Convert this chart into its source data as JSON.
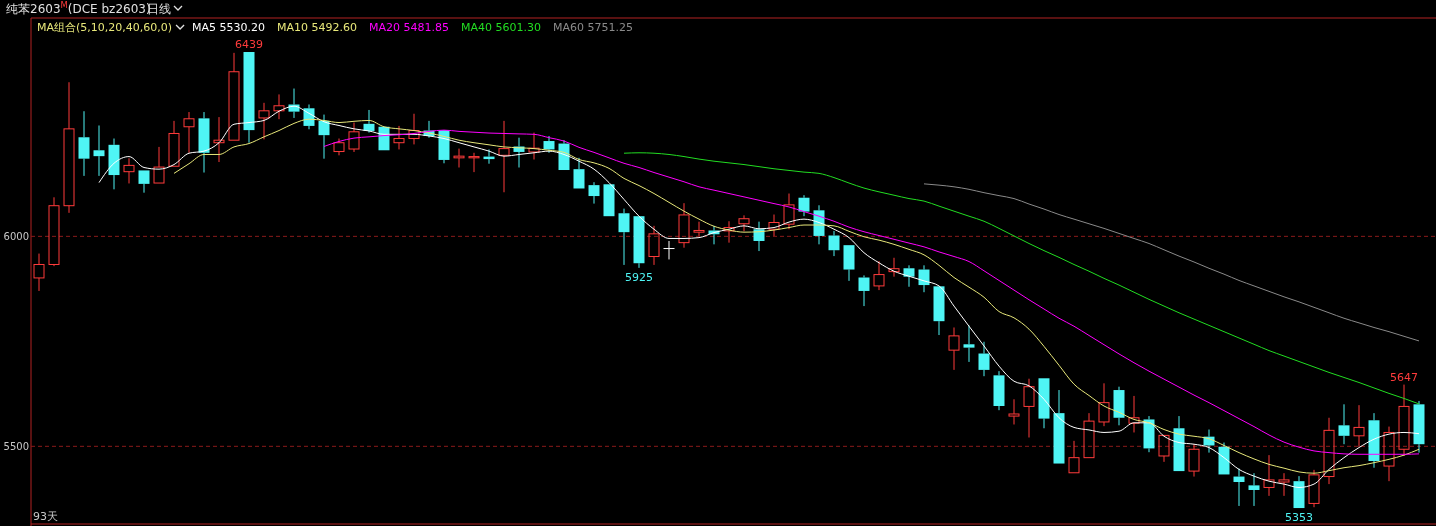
{
  "chart_data": {
    "type": "candlestick",
    "title": "纯苯2603$^{M}$(DCE bz2603)",
    "subtitle": "日线",
    "legend_title": "MA组合(5,10,20,40,60,0)",
    "grid": "y",
    "ylim": [
      5315,
      6520
    ],
    "yticks": [
      6000,
      5500
    ],
    "annotations": [
      {
        "text": "6439",
        "y": 6439
      },
      {
        "text": "5925",
        "y": 5925
      },
      {
        "text": "5647",
        "y": 5647
      },
      {
        "text": "5353",
        "y": 5353
      },
      "93天"
    ],
    "categories": [
      null,
      null,
      null,
      null,
      null,
      null,
      null,
      null,
      null,
      null,
      null,
      null,
      null,
      null,
      null,
      null,
      null,
      null,
      null,
      null,
      null,
      null,
      null,
      null,
      null,
      null,
      null,
      null,
      null,
      null,
      null,
      null,
      null,
      null,
      null,
      null,
      null,
      null,
      null,
      null,
      null,
      null,
      null,
      null,
      null,
      null,
      null,
      null,
      null,
      null,
      null,
      null,
      null,
      null,
      null,
      null,
      null,
      null,
      null,
      null,
      null,
      null,
      null,
      null,
      null,
      null,
      null,
      null,
      null,
      null,
      null,
      null,
      null,
      null,
      null,
      null,
      null,
      null,
      null,
      null,
      null,
      null,
      null,
      null,
      null,
      null,
      null,
      null,
      null,
      null,
      null,
      null,
      null
    ],
    "ohlc": [
      [
        5901,
        5959,
        5870,
        5933
      ],
      [
        5933,
        6093,
        5929,
        6073
      ],
      [
        6073,
        6367,
        6056,
        6256
      ],
      [
        6236,
        6298,
        6144,
        6185
      ],
      [
        6205,
        6264,
        6144,
        6191
      ],
      [
        6218,
        6233,
        6112,
        6146
      ],
      [
        6154,
        6186,
        6126,
        6169
      ],
      [
        6157,
        6157,
        6104,
        6125
      ],
      [
        6127,
        6213,
        6127,
        6165
      ],
      [
        6167,
        6275,
        6167,
        6245
      ],
      [
        6261,
        6296,
        6199,
        6280
      ],
      [
        6281,
        6296,
        6152,
        6199
      ],
      [
        6223,
        6284,
        6177,
        6229
      ],
      [
        6229,
        6437,
        6229,
        6392
      ],
      [
        6439,
        6439,
        6223,
        6253
      ],
      [
        6282,
        6318,
        6231,
        6299
      ],
      [
        6299,
        6338,
        6279,
        6311
      ],
      [
        6314,
        6352,
        6282,
        6297
      ],
      [
        6305,
        6314,
        6255,
        6263
      ],
      [
        6275,
        6290,
        6185,
        6241
      ],
      [
        6202,
        6233,
        6193,
        6223
      ],
      [
        6208,
        6271,
        6201,
        6249
      ],
      [
        6268,
        6301,
        6247,
        6251
      ],
      [
        6261,
        6261,
        6205,
        6205
      ],
      [
        6223,
        6263,
        6207,
        6233
      ],
      [
        6233,
        6292,
        6219,
        6252
      ],
      [
        6252,
        6275,
        6235,
        6239
      ],
      [
        6253,
        6253,
        6174,
        6182
      ],
      [
        6187,
        6209,
        6164,
        6191
      ],
      [
        6187,
        6199,
        6153,
        6190
      ],
      [
        6190,
        6207,
        6173,
        6184
      ],
      [
        6193,
        6275,
        6105,
        6209
      ],
      [
        6214,
        6235,
        6164,
        6201
      ],
      [
        6201,
        6247,
        6183,
        6210
      ],
      [
        6227,
        6239,
        6199,
        6207
      ],
      [
        6221,
        6229,
        6158,
        6158
      ],
      [
        6160,
        6187,
        6114,
        6114
      ],
      [
        6122,
        6129,
        6078,
        6096
      ],
      [
        6124,
        6124,
        6048,
        6048
      ],
      [
        6055,
        6066,
        5932,
        6010
      ],
      [
        6048,
        6048,
        5925,
        5936
      ],
      [
        5952,
        6025,
        5932,
        6006
      ],
      [
        5971,
        5989,
        5945,
        5971
      ],
      [
        5985,
        6079,
        5973,
        6051
      ],
      [
        6010,
        6035,
        6001,
        6014
      ],
      [
        6014,
        6025,
        5981,
        6005
      ],
      [
        6013,
        6036,
        5985,
        6021
      ],
      [
        6030,
        6050,
        6012,
        6042
      ],
      [
        6017,
        6035,
        5965,
        5989
      ],
      [
        6017,
        6052,
        6001,
        6033
      ],
      [
        6029,
        6102,
        6017,
        6075
      ],
      [
        6092,
        6098,
        6048,
        6059
      ],
      [
        6062,
        6074,
        5981,
        6001
      ],
      [
        6002,
        6013,
        5953,
        5967
      ],
      [
        5979,
        5979,
        5894,
        5921
      ],
      [
        5902,
        5907,
        5834,
        5870
      ],
      [
        5882,
        5941,
        5872,
        5909
      ],
      [
        5916,
        5949,
        5904,
        5923
      ],
      [
        5924,
        5931,
        5880,
        5904
      ],
      [
        5921,
        5931,
        5867,
        5884
      ],
      [
        5881,
        5881,
        5765,
        5798
      ],
      [
        5729,
        5783,
        5682,
        5763
      ],
      [
        5743,
        5788,
        5701,
        5735
      ],
      [
        5721,
        5749,
        5667,
        5682
      ],
      [
        5669,
        5679,
        5586,
        5596
      ],
      [
        5572,
        5612,
        5552,
        5577
      ],
      [
        5595,
        5661,
        5521,
        5642
      ],
      [
        5662,
        5662,
        5543,
        5566
      ],
      [
        5579,
        5634,
        5459,
        5459
      ],
      [
        5437,
        5513,
        5437,
        5473
      ],
      [
        5473,
        5579,
        5473,
        5560
      ],
      [
        5558,
        5650,
        5548,
        5604
      ],
      [
        5634,
        5642,
        5550,
        5568
      ],
      [
        5555,
        5620,
        5533,
        5568
      ],
      [
        5564,
        5572,
        5486,
        5495
      ],
      [
        5477,
        5526,
        5463,
        5526
      ],
      [
        5543,
        5572,
        5441,
        5441
      ],
      [
        5441,
        5505,
        5428,
        5493
      ],
      [
        5523,
        5540,
        5485,
        5502
      ],
      [
        5499,
        5509,
        5433,
        5433
      ],
      [
        5428,
        5447,
        5358,
        5415
      ],
      [
        5407,
        5436,
        5358,
        5396
      ],
      [
        5402,
        5479,
        5382,
        5420
      ],
      [
        5415,
        5436,
        5382,
        5420
      ],
      [
        5417,
        5429,
        5353,
        5353
      ],
      [
        5364,
        5444,
        5355,
        5432
      ],
      [
        5428,
        5568,
        5410,
        5538
      ],
      [
        5550,
        5600,
        5505,
        5525
      ],
      [
        5525,
        5598,
        5499,
        5545
      ],
      [
        5562,
        5579,
        5449,
        5465
      ],
      [
        5453,
        5547,
        5417,
        5533
      ],
      [
        5493,
        5647,
        5477,
        5595
      ],
      [
        5600,
        5608,
        5485,
        5505
      ]
    ],
    "colors": [
      "#ff3b3b",
      "#ff3b3b",
      "#ff3b3b",
      "#4ff5f5",
      "#4ff5f5",
      "#4ff5f5",
      "#ff3b3b",
      "#4ff5f5",
      "#ff3b3b",
      "#ff3b3b",
      "#ff3b3b",
      "#4ff5f5",
      "#ff3b3b",
      "#ff3b3b",
      "#4ff5f5",
      "#ff3b3b",
      "#ff3b3b",
      "#4ff5f5",
      "#4ff5f5",
      "#4ff5f5",
      "#ff3b3b",
      "#ff3b3b",
      "#4ff5f5",
      "#4ff5f5",
      "#ff3b3b",
      "#ff3b3b",
      "#4ff5f5",
      "#4ff5f5",
      "#ff3b3b",
      "#ff3b3b",
      "#4ff5f5",
      "#ff3b3b",
      "#4ff5f5",
      "#ff3b3b",
      "#4ff5f5",
      "#4ff5f5",
      "#4ff5f5",
      "#4ff5f5",
      "#4ff5f5",
      "#4ff5f5",
      "#4ff5f5",
      "#ff3b3b",
      "#ffffff",
      "#ff3b3b",
      "#ff3b3b",
      "#4ff5f5",
      "#ff3b3b",
      "#ff3b3b",
      "#4ff5f5",
      "#ff3b3b",
      "#ff3b3b",
      "#4ff5f5",
      "#4ff5f5",
      "#4ff5f5",
      "#4ff5f5",
      "#4ff5f5",
      "#ff3b3b",
      "#ff3b3b",
      "#4ff5f5",
      "#4ff5f5",
      "#4ff5f5",
      "#ff3b3b",
      "#4ff5f5",
      "#4ff5f5",
      "#4ff5f5",
      "#ff3b3b",
      "#ff3b3b",
      "#4ff5f5",
      "#4ff5f5",
      "#ff3b3b",
      "#ff3b3b",
      "#ff3b3b",
      "#4ff5f5",
      "#ff3b3b",
      "#4ff5f5",
      "#ff3b3b",
      "#4ff5f5",
      "#ff3b3b",
      "#4ff5f5",
      "#4ff5f5",
      "#4ff5f5",
      "#4ff5f5",
      "#ff3b3b",
      "#ff3b3b",
      "#4ff5f5",
      "#ff3b3b",
      "#ff3b3b",
      "#4ff5f5",
      "#ff3b3b",
      "#4ff5f5",
      "#ff3b3b",
      "#ff3b3b",
      "#4ff5f5"
    ],
    "series": [
      {
        "name": "MA5 5530.20",
        "type": "line",
        "color": "#ffffff",
        "values": [
          null,
          null,
          null,
          null,
          6128,
          6174,
          6190,
          6164,
          6160,
          6171,
          6198,
          6203,
          6223,
          6267,
          6271,
          6276,
          6298,
          6310,
          6293,
          6273,
          6264,
          6256,
          6251,
          6243,
          6243,
          6243,
          6239,
          6233,
          6223,
          6213,
          6203,
          6191,
          6195,
          6199,
          6203,
          6195,
          6179,
          6160,
          6128,
          6088,
          6048,
          6017,
          5995,
          5995,
          5997,
          6009,
          6017,
          6025,
          6018,
          6021,
          6034,
          6041,
          6033,
          6017,
          5997,
          5961,
          5937,
          5917,
          5905,
          5894,
          5882,
          5834,
          5786,
          5739,
          5691,
          5655,
          5644,
          5612,
          5568,
          5545,
          5539,
          5533,
          5536,
          5556,
          5556,
          5524,
          5509,
          5505,
          5497,
          5473,
          5445,
          5429,
          5417,
          5410,
          5402,
          5410,
          5445,
          5473,
          5497,
          5517,
          5529,
          5533,
          5530
        ]
      },
      {
        "name": "MA10 5492.60",
        "type": "line",
        "color": "#e8e87a",
        "values": [
          null,
          null,
          null,
          null,
          null,
          null,
          null,
          null,
          null,
          6150,
          6173,
          6195,
          6195,
          6213,
          6221,
          6237,
          6252,
          6269,
          6279,
          6276,
          6271,
          6274,
          6276,
          6261,
          6256,
          6252,
          6246,
          6238,
          6229,
          6223,
          6218,
          6213,
          6211,
          6209,
          6205,
          6200,
          6183,
          6175,
          6162,
          6138,
          6121,
          6102,
          6081,
          6060,
          6041,
          6024,
          6015,
          6010,
          6011,
          6015,
          6021,
          6027,
          6027,
          6025,
          6012,
          5999,
          5991,
          5981,
          5969,
          5956,
          5931,
          5902,
          5879,
          5855,
          5821,
          5806,
          5779,
          5738,
          5693,
          5648,
          5621,
          5596,
          5581,
          5564,
          5556,
          5540,
          5529,
          5524,
          5518,
          5502,
          5485,
          5470,
          5457,
          5448,
          5439,
          5436,
          5442,
          5449,
          5454,
          5461,
          5469,
          5479,
          5493
        ]
      },
      {
        "name": "MA20 5481.85",
        "type": "line",
        "color": "#ff00ff",
        "values": [
          null,
          null,
          null,
          null,
          null,
          null,
          null,
          null,
          null,
          null,
          null,
          null,
          null,
          null,
          null,
          null,
          null,
          null,
          null,
          6214,
          6226,
          6234,
          6237,
          6240,
          6242,
          6245,
          6250,
          6253,
          6250,
          6248,
          6246,
          6245,
          6244,
          6243,
          6235,
          6227,
          6212,
          6200,
          6187,
          6174,
          6164,
          6152,
          6141,
          6130,
          6118,
          6110,
          6102,
          6094,
          6086,
          6078,
          6070,
          6059,
          6048,
          6036,
          6022,
          6011,
          6002,
          5993,
          5984,
          5975,
          5963,
          5952,
          5940,
          5918,
          5895,
          5872,
          5849,
          5827,
          5805,
          5786,
          5764,
          5742,
          5720,
          5699,
          5679,
          5660,
          5641,
          5622,
          5604,
          5585,
          5566,
          5547,
          5527,
          5510,
          5498,
          5489,
          5485,
          5482,
          5481,
          5481,
          5481,
          5481,
          5482
        ]
      },
      {
        "name": "MA40 5601.30",
        "type": "line",
        "color": "#22dd22",
        "values": [
          null,
          null,
          null,
          null,
          null,
          null,
          null,
          null,
          null,
          null,
          null,
          null,
          null,
          null,
          null,
          null,
          null,
          null,
          null,
          null,
          null,
          null,
          null,
          null,
          null,
          null,
          null,
          null,
          null,
          null,
          null,
          null,
          null,
          null,
          null,
          null,
          null,
          null,
          null,
          6198,
          6199,
          6198,
          6195,
          6190,
          6184,
          6179,
          6175,
          6171,
          6166,
          6161,
          6157,
          6153,
          6150,
          6140,
          6127,
          6115,
          6106,
          6098,
          6090,
          6084,
          6072,
          6060,
          6048,
          6036,
          6019,
          6001,
          5983,
          5966,
          5950,
          5933,
          5917,
          5900,
          5884,
          5867,
          5850,
          5834,
          5818,
          5803,
          5788,
          5773,
          5758,
          5743,
          5728,
          5715,
          5702,
          5689,
          5676,
          5664,
          5652,
          5639,
          5626,
          5614,
          5601
        ]
      },
      {
        "name": "MA60 5751.25",
        "type": "line",
        "color": "#8a8a8a",
        "values": [
          null,
          null,
          null,
          null,
          null,
          null,
          null,
          null,
          null,
          null,
          null,
          null,
          null,
          null,
          null,
          null,
          null,
          null,
          null,
          null,
          null,
          null,
          null,
          null,
          null,
          null,
          null,
          null,
          null,
          null,
          null,
          null,
          null,
          null,
          null,
          null,
          null,
          null,
          null,
          null,
          null,
          null,
          null,
          null,
          null,
          null,
          null,
          null,
          null,
          null,
          null,
          null,
          null,
          null,
          null,
          null,
          null,
          null,
          null,
          6125,
          6122,
          6118,
          6112,
          6104,
          6097,
          6090,
          6077,
          6065,
          6052,
          6041,
          6030,
          6019,
          6007,
          5995,
          5983,
          5968,
          5953,
          5939,
          5924,
          5910,
          5895,
          5882,
          5869,
          5856,
          5844,
          5831,
          5818,
          5805,
          5794,
          5783,
          5773,
          5762,
          5751
        ]
      }
    ]
  }
}
